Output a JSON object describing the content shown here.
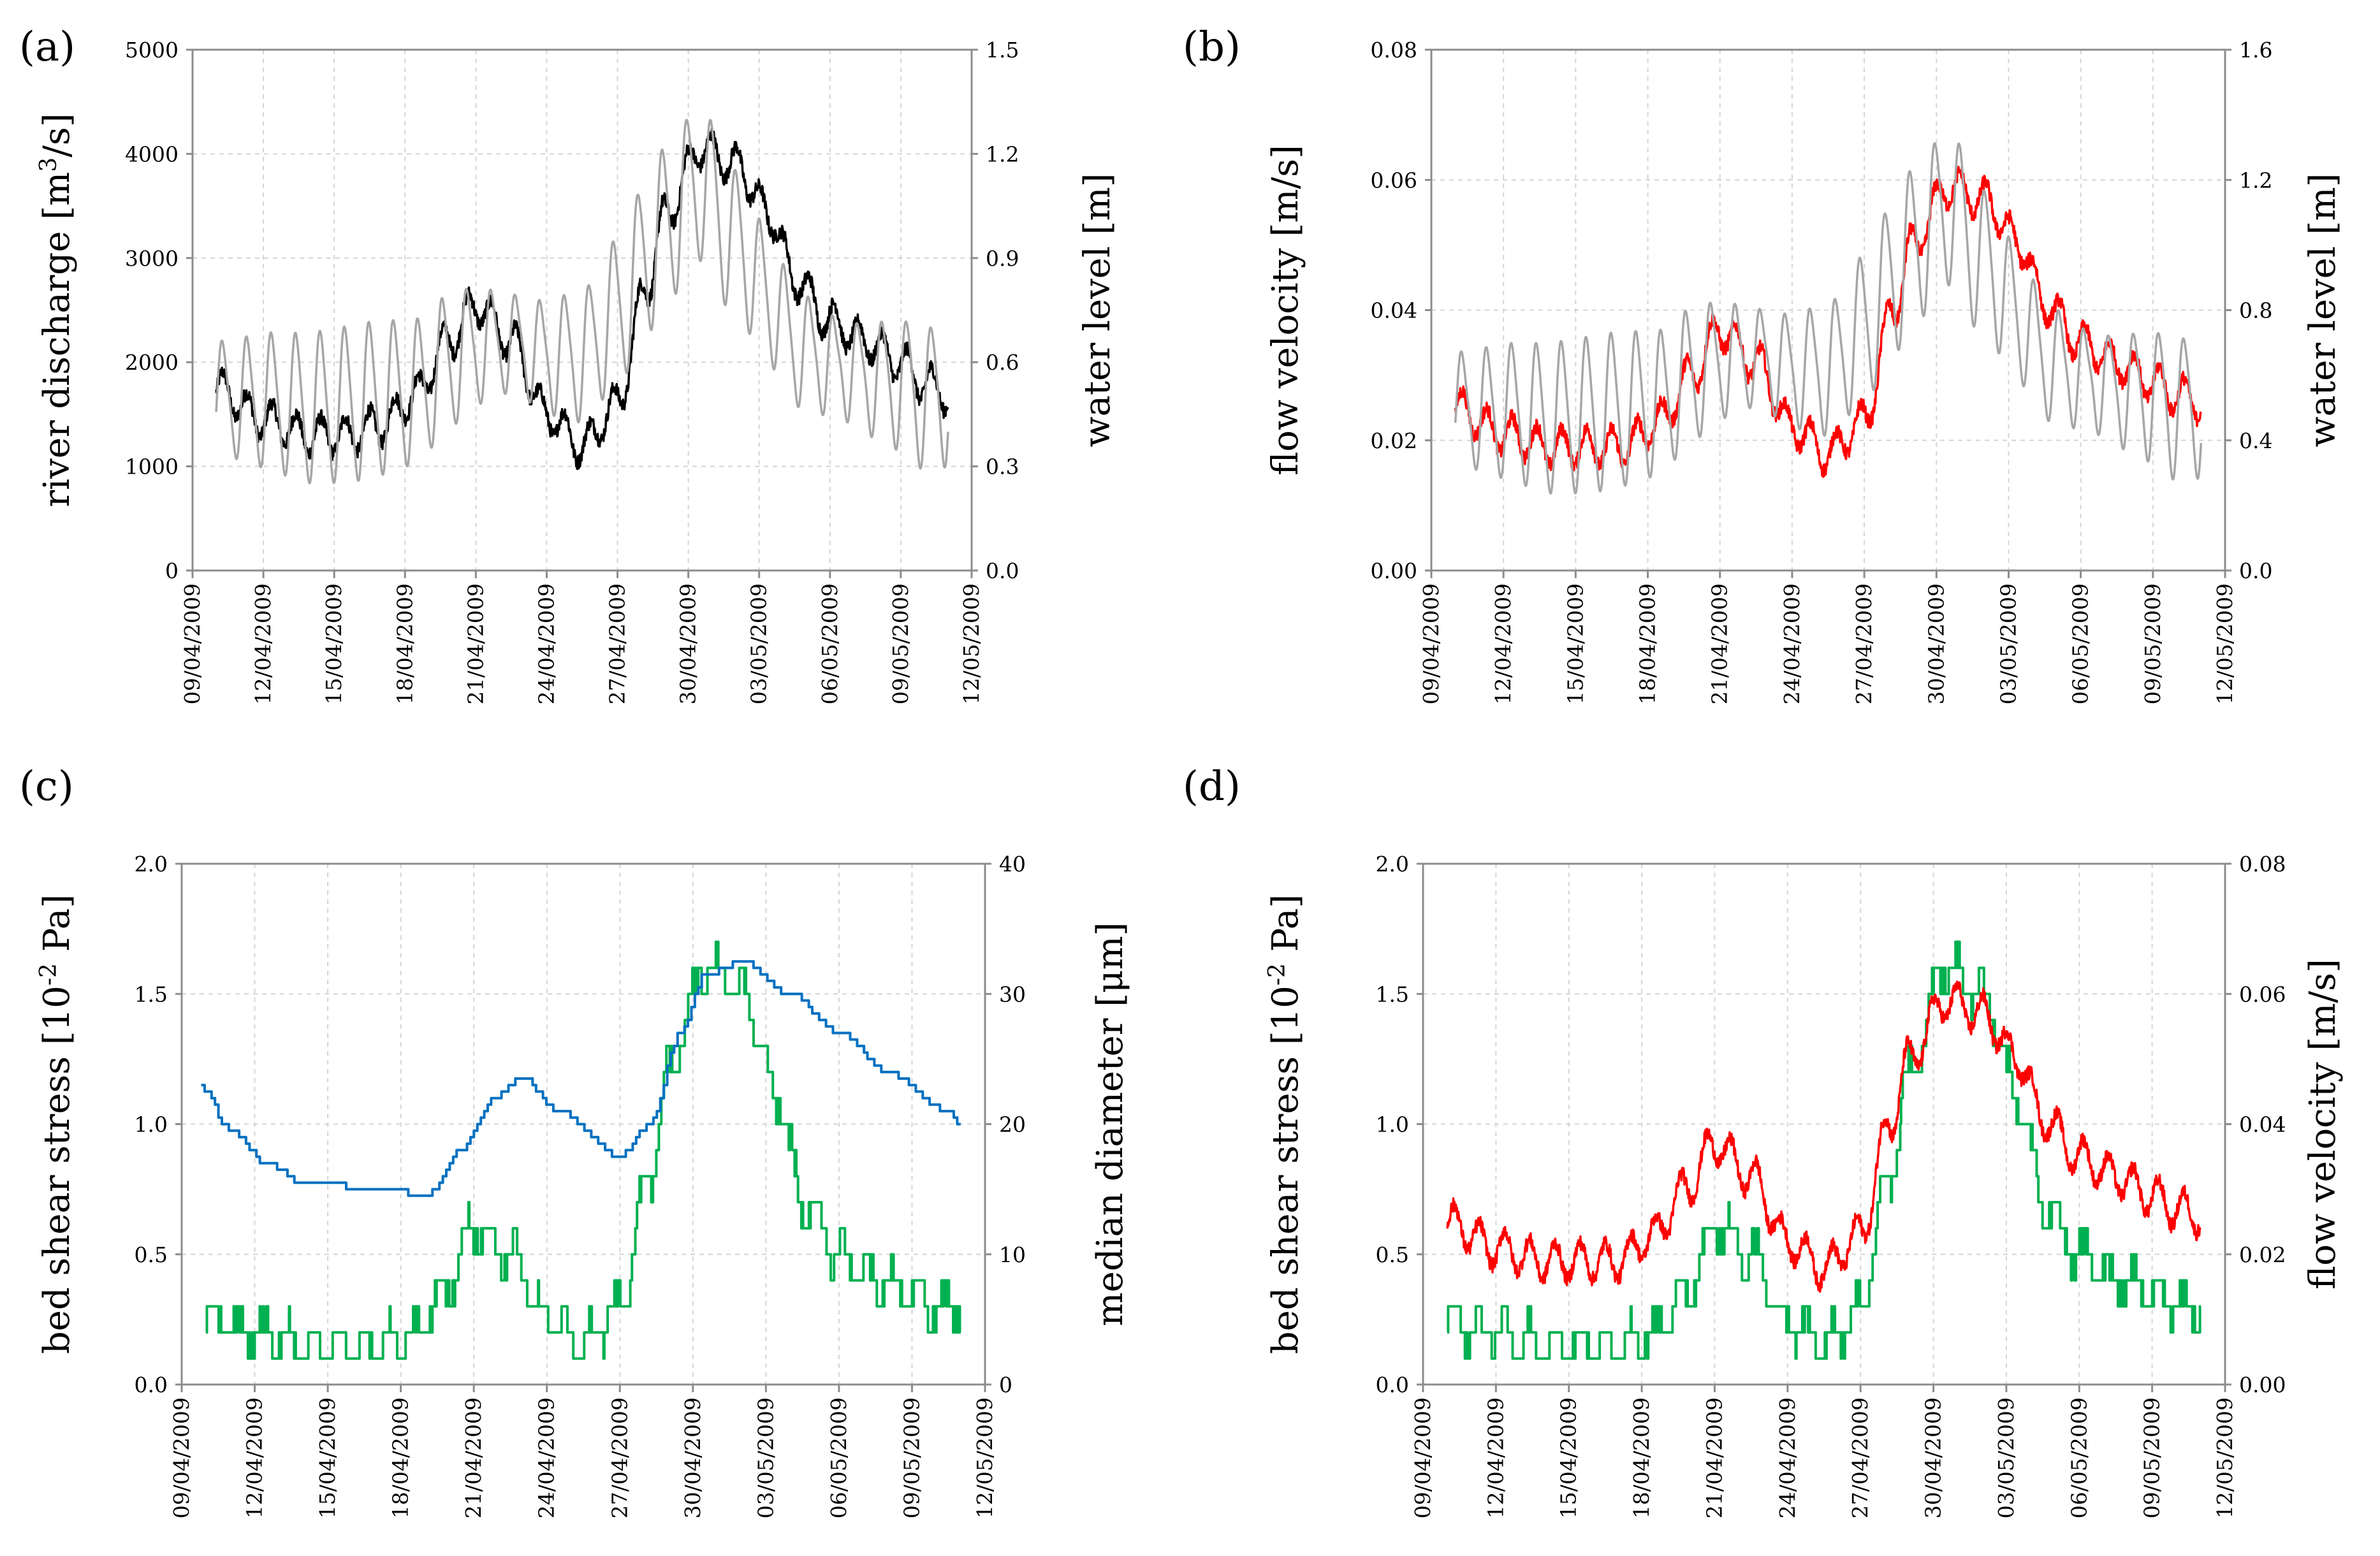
{
  "chart_data": [
    {
      "type": "line",
      "panel_label": "(a)",
      "ylabel_left_parts": [
        "river discharge [m",
        "3",
        "/s]"
      ],
      "ylabel_right": "water level [m]",
      "x_ticks": [
        "09/04/2009",
        "12/04/2009",
        "15/04/2009",
        "18/04/2009",
        "21/04/2009",
        "24/04/2009",
        "27/04/2009",
        "30/04/2009",
        "03/05/2009",
        "06/05/2009",
        "09/05/2009",
        "12/05/2009"
      ],
      "x_range_days": [
        0,
        33
      ],
      "y_left": {
        "range": [
          0,
          5000
        ],
        "ticks": [
          "0",
          "1000",
          "2000",
          "3000",
          "4000",
          "5000"
        ]
      },
      "y_right": {
        "range": [
          0,
          1.5
        ],
        "ticks": [
          "0.0",
          "0.3",
          "0.6",
          "0.9",
          "1.2",
          "1.5"
        ]
      },
      "series": [
        {
          "name": "river discharge",
          "axis": "left",
          "color": "#000000",
          "style": "noisy",
          "x": [
            1,
            3,
            5,
            6.5,
            8,
            9.5,
            10.8,
            12,
            13.5,
            15,
            16.5,
            18,
            19.2,
            20,
            21.5,
            23,
            24.5,
            25.5,
            27,
            28.5,
            30,
            31,
            32
          ],
          "y": [
            1750,
            1450,
            1300,
            1300,
            1400,
            1700,
            2200,
            2550,
            2200,
            1500,
            1200,
            1600,
            2700,
            3400,
            4050,
            3900,
            3400,
            2800,
            2400,
            2200,
            2000,
            1800,
            1700
          ]
        },
        {
          "name": "water level",
          "axis": "right",
          "color": "#a6a6a6",
          "style": "tidal",
          "x": [
            1,
            3,
            5,
            6.5,
            8,
            9.5,
            10.8,
            12,
            13.5,
            15,
            16.5,
            18,
            19.2,
            20,
            21.5,
            23,
            24.5,
            25.5,
            27,
            28.5,
            30,
            31,
            32
          ],
          "y": [
            0.5,
            0.49,
            0.47,
            0.48,
            0.5,
            0.52,
            0.6,
            0.65,
            0.66,
            0.62,
            0.62,
            0.75,
            0.9,
            1.0,
            1.12,
            0.95,
            0.78,
            0.65,
            0.6,
            0.56,
            0.54,
            0.5,
            0.52
          ]
        }
      ]
    },
    {
      "type": "line",
      "panel_label": "(b)",
      "ylabel_left": "flow velocity [m/s]",
      "ylabel_right": "water level [m]",
      "x_ticks": [
        "09/04/2009",
        "12/04/2009",
        "15/04/2009",
        "18/04/2009",
        "21/04/2009",
        "24/04/2009",
        "27/04/2009",
        "30/04/2009",
        "03/05/2009",
        "06/05/2009",
        "09/05/2009",
        "12/05/2009"
      ],
      "x_range_days": [
        0,
        33
      ],
      "y_left": {
        "range": [
          0,
          0.08
        ],
        "ticks": [
          "0.00",
          "0.02",
          "0.04",
          "0.06",
          "0.08"
        ]
      },
      "y_right": {
        "range": [
          0,
          1.6
        ],
        "ticks": [
          "0.0",
          "0.4",
          "0.8",
          "1.2",
          "1.6"
        ]
      },
      "series": [
        {
          "name": "flow velocity",
          "axis": "left",
          "color": "#ff0000",
          "style": "noisy",
          "x": [
            1,
            3,
            5,
            6.5,
            8,
            9.5,
            10.8,
            12,
            13.5,
            15,
            16.5,
            18,
            19.2,
            20,
            21.5,
            23,
            24.5,
            25.5,
            27,
            28.5,
            30,
            31,
            32
          ],
          "y": [
            0.025,
            0.021,
            0.019,
            0.019,
            0.019,
            0.023,
            0.03,
            0.037,
            0.032,
            0.022,
            0.018,
            0.023,
            0.04,
            0.05,
            0.059,
            0.057,
            0.05,
            0.041,
            0.035,
            0.032,
            0.029,
            0.027,
            0.026
          ]
        },
        {
          "name": "water level",
          "axis": "right",
          "color": "#a6a6a6",
          "style": "tidal",
          "x": [
            1,
            3,
            5,
            6.5,
            8,
            9.5,
            10.8,
            12,
            13.5,
            15,
            16.5,
            18,
            19.2,
            20,
            21.5,
            23,
            24.5,
            25.5,
            27,
            28.5,
            30,
            31,
            32
          ],
          "y": [
            0.5,
            0.49,
            0.47,
            0.48,
            0.5,
            0.52,
            0.6,
            0.65,
            0.66,
            0.62,
            0.62,
            0.75,
            0.9,
            1.0,
            1.12,
            0.95,
            0.78,
            0.65,
            0.6,
            0.56,
            0.54,
            0.5,
            0.52
          ]
        }
      ]
    },
    {
      "type": "line",
      "panel_label": "(c)",
      "ylabel_left_parts": [
        "bed shear stress [10",
        "-2",
        " Pa]"
      ],
      "ylabel_right": "median diameter [μm]",
      "x_ticks": [
        "09/04/2009",
        "12/04/2009",
        "15/04/2009",
        "18/04/2009",
        "21/04/2009",
        "24/04/2009",
        "27/04/2009",
        "30/04/2009",
        "03/05/2009",
        "06/05/2009",
        "09/05/2009",
        "12/05/2009"
      ],
      "x_range_days": [
        0,
        33
      ],
      "y_left": {
        "range": [
          0,
          2.0
        ],
        "ticks": [
          "0.0",
          "0.5",
          "1.0",
          "1.5",
          "2.0"
        ]
      },
      "y_right": {
        "range": [
          0,
          40
        ],
        "ticks": [
          "0",
          "10",
          "20",
          "30",
          "40"
        ]
      },
      "series": [
        {
          "name": "bed shear stress",
          "axis": "left",
          "color": "#00b050",
          "style": "step_noisy",
          "step": 0.1,
          "x": [
            1,
            3,
            5,
            6.5,
            8,
            9.5,
            10.8,
            12,
            13.5,
            15,
            16.5,
            18,
            19.2,
            20,
            21.5,
            23,
            24.5,
            25.5,
            27,
            28.5,
            30,
            31,
            32
          ],
          "y": [
            0.25,
            0.2,
            0.15,
            0.15,
            0.15,
            0.2,
            0.35,
            0.6,
            0.5,
            0.25,
            0.15,
            0.3,
            0.8,
            1.2,
            1.6,
            1.5,
            1.1,
            0.7,
            0.5,
            0.4,
            0.35,
            0.3,
            0.3
          ]
        },
        {
          "name": "median diameter",
          "axis": "right",
          "color": "#0070c0",
          "style": "step",
          "step": 0.5,
          "x": [
            0.8,
            2,
            3.5,
            5,
            8.5,
            10,
            11.5,
            12.8,
            14,
            15.5,
            18,
            19.2,
            20.5,
            21.5,
            23,
            25,
            27,
            29,
            31.5,
            32
          ],
          "y": [
            22.8,
            19.5,
            17,
            15.5,
            15,
            14.5,
            18,
            22,
            23.5,
            21,
            17.5,
            20,
            27,
            31.5,
            32.5,
            30,
            27,
            24,
            21,
            20
          ]
        }
      ]
    },
    {
      "type": "line",
      "panel_label": "(d)",
      "ylabel_left_parts": [
        "bed shear stress [10",
        "-2",
        " Pa]"
      ],
      "ylabel_right": "flow velocity [m/s]",
      "x_ticks": [
        "09/04/2009",
        "12/04/2009",
        "15/04/2009",
        "18/04/2009",
        "21/04/2009",
        "24/04/2009",
        "27/04/2009",
        "30/04/2009",
        "03/05/2009",
        "06/05/2009",
        "09/05/2009",
        "12/05/2009"
      ],
      "x_range_days": [
        0,
        33
      ],
      "y_left": {
        "range": [
          0,
          2.0
        ],
        "ticks": [
          "0.0",
          "0.5",
          "1.0",
          "1.5",
          "2.0"
        ]
      },
      "y_right": {
        "range": [
          0,
          0.08
        ],
        "ticks": [
          "0.00",
          "0.02",
          "0.04",
          "0.06",
          "0.08"
        ]
      },
      "series": [
        {
          "name": "bed shear stress",
          "axis": "left",
          "color": "#00b050",
          "style": "step_noisy",
          "step": 0.1,
          "x": [
            1,
            3,
            5,
            6.5,
            8,
            9.5,
            10.8,
            12,
            13.5,
            15,
            16.5,
            18,
            19.2,
            20,
            21.5,
            23,
            24.5,
            25.5,
            27,
            28.5,
            30,
            31,
            32
          ],
          "y": [
            0.25,
            0.2,
            0.15,
            0.15,
            0.15,
            0.2,
            0.35,
            0.6,
            0.5,
            0.25,
            0.15,
            0.3,
            0.8,
            1.2,
            1.6,
            1.5,
            1.1,
            0.7,
            0.5,
            0.4,
            0.35,
            0.3,
            0.3
          ]
        },
        {
          "name": "flow velocity",
          "axis": "right",
          "color": "#ff0000",
          "style": "noisy",
          "x": [
            1,
            3,
            5,
            6.5,
            8,
            9.5,
            10.8,
            12,
            13.5,
            15,
            16.5,
            18,
            19.2,
            20,
            21.5,
            23,
            24.5,
            25.5,
            27,
            28.5,
            30,
            31,
            32
          ],
          "y": [
            0.025,
            0.021,
            0.019,
            0.019,
            0.019,
            0.023,
            0.03,
            0.037,
            0.032,
            0.022,
            0.018,
            0.023,
            0.04,
            0.05,
            0.059,
            0.057,
            0.05,
            0.041,
            0.035,
            0.032,
            0.029,
            0.027,
            0.026
          ]
        }
      ]
    }
  ]
}
